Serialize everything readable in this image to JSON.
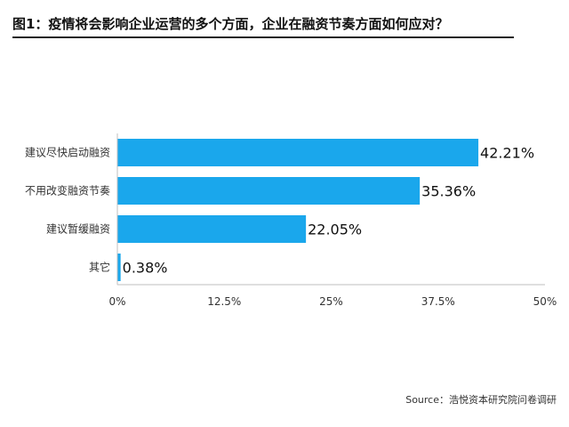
{
  "title": "图1：疫情将会影响企业运营的多个方面，企业在融资节奏方面如何应对？",
  "source": "Source：浩悦资本研究院问卷调研",
  "colors": {
    "bar": "#1aa7ec",
    "axis": "#bfbfbf",
    "rule": "#222222"
  },
  "chart_data": {
    "type": "bar",
    "orientation": "horizontal",
    "categories": [
      "建议尽快启动融资",
      "不用改变融资节奏",
      "建议暂缓融资",
      "其它"
    ],
    "values": [
      42.21,
      35.36,
      22.05,
      0.38
    ],
    "value_labels": [
      "42.21%",
      "35.36%",
      "22.05%",
      "0.38%"
    ],
    "xlim": [
      0,
      50
    ],
    "xticks": [
      0,
      12.5,
      25,
      37.5,
      50
    ],
    "xtick_labels": [
      "0%",
      "12.5%",
      "25%",
      "37.5%",
      "50%"
    ],
    "grid": false
  }
}
